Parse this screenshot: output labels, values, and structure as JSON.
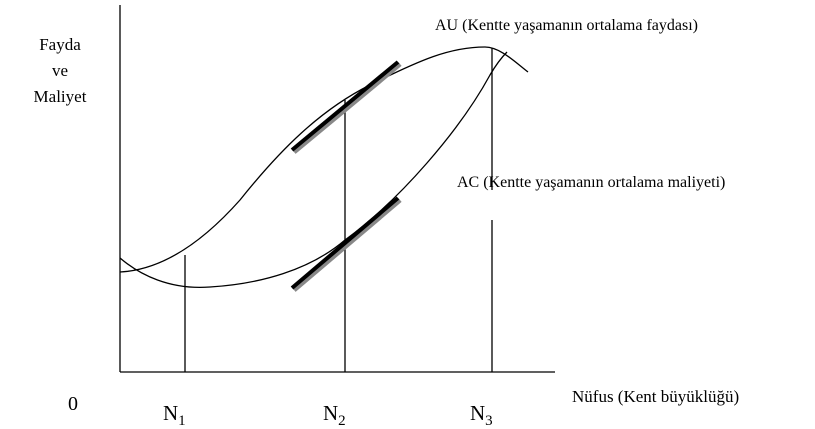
{
  "y_axis_label": [
    "Fayda",
    "ve",
    "Maliyet"
  ],
  "x_axis_label": "Nüfus (Kent büyüklüğü)",
  "origin": "0",
  "curves": {
    "au": "AU (Kentte yaşamanın ortalama faydası)",
    "ac": "AC (Kentte yaşamanın ortalama maliyeti)"
  },
  "markers": [
    {
      "letter": "N",
      "index": "1"
    },
    {
      "letter": "N",
      "index": "2"
    },
    {
      "letter": "N",
      "index": "3"
    }
  ]
}
